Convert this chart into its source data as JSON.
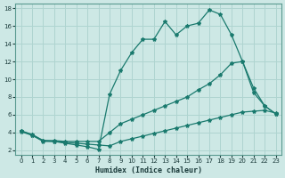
{
  "xlabel": "Humidex (Indice chaleur)",
  "xlim": [
    -0.5,
    23.5
  ],
  "ylim": [
    1.5,
    18.5
  ],
  "xticks": [
    0,
    1,
    2,
    3,
    4,
    5,
    6,
    7,
    8,
    9,
    10,
    11,
    12,
    13,
    14,
    15,
    16,
    17,
    18,
    19,
    20,
    21,
    22,
    23
  ],
  "yticks": [
    2,
    4,
    6,
    8,
    10,
    12,
    14,
    16,
    18
  ],
  "bg_color": "#cde8e5",
  "grid_color": "#afd4d0",
  "line_color": "#1a7a6e",
  "line1_x": [
    0,
    1,
    2,
    3,
    4,
    5,
    6,
    7,
    8,
    9,
    10,
    11,
    12,
    13,
    14,
    15,
    16,
    17,
    18,
    19,
    20,
    21,
    22,
    23
  ],
  "line1_y": [
    4.2,
    3.7,
    3.0,
    3.0,
    2.8,
    2.6,
    2.4,
    2.1,
    8.3,
    11.0,
    13.0,
    14.5,
    14.5,
    16.5,
    15.0,
    16.0,
    16.3,
    17.8,
    17.3,
    15.0,
    12.0,
    9.0,
    7.0,
    6.1
  ],
  "line2_x": [
    0,
    1,
    2,
    3,
    4,
    5,
    6,
    7,
    8,
    9,
    10,
    11,
    12,
    13,
    14,
    15,
    16,
    17,
    18,
    19,
    20,
    21,
    22,
    23
  ],
  "line2_y": [
    4.2,
    3.8,
    3.1,
    3.1,
    3.0,
    3.0,
    3.0,
    3.0,
    4.0,
    5.0,
    5.5,
    6.0,
    6.5,
    7.0,
    7.5,
    8.0,
    8.8,
    9.5,
    10.5,
    11.8,
    12.0,
    8.5,
    7.0,
    6.1
  ],
  "line3_x": [
    0,
    1,
    2,
    3,
    4,
    5,
    6,
    7,
    8,
    9,
    10,
    11,
    12,
    13,
    14,
    15,
    16,
    17,
    18,
    19,
    20,
    21,
    22,
    23
  ],
  "line3_y": [
    4.1,
    3.7,
    3.1,
    3.0,
    2.9,
    2.8,
    2.7,
    2.6,
    2.5,
    3.0,
    3.3,
    3.6,
    3.9,
    4.2,
    4.5,
    4.8,
    5.1,
    5.4,
    5.7,
    6.0,
    6.3,
    6.4,
    6.5,
    6.2
  ]
}
